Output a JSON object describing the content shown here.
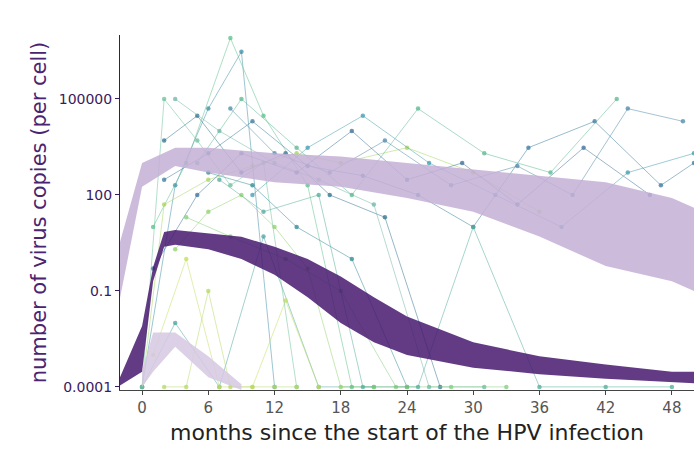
{
  "chart_data": {
    "type": "line",
    "x_label": "months since the start of the HPV infection",
    "y_label": "number of virus copies (per cell)",
    "xlim": [
      -2,
      50
    ],
    "xticks": [
      0,
      6,
      12,
      18,
      24,
      30,
      36,
      42,
      48
    ],
    "ylim": [
      8e-05,
      10000000
    ],
    "yticks": [
      0.0001,
      0.1,
      100,
      100000
    ],
    "log": "y",
    "grid": false,
    "series": [
      {
        "type": "line",
        "marker": "circle",
        "color": "#3b8ea5",
        "x": [
          0,
          3,
          6,
          9,
          12
        ],
        "values": [
          0.0001,
          200,
          50000,
          3000000,
          0.0001
        ]
      },
      {
        "type": "line",
        "marker": "circle",
        "color": "#5bc08a",
        "x": [
          1,
          4,
          8,
          11,
          15,
          19
        ],
        "values": [
          10,
          1000,
          8000000,
          30000,
          200,
          0.0001
        ]
      },
      {
        "type": "line",
        "marker": "circle",
        "color": "#2f6f8f",
        "x": [
          2,
          5,
          9,
          13,
          17,
          22,
          27
        ],
        "values": [
          5000,
          30000,
          500,
          2000,
          100,
          20,
          0.0001
        ]
      },
      {
        "type": "line",
        "marker": "circle",
        "color": "#a5d65a",
        "x": [
          0,
          2,
          6,
          10,
          14,
          18,
          24,
          30,
          36
        ],
        "values": [
          0.0001,
          50,
          300,
          800,
          2000,
          1000,
          3000,
          500,
          30
        ]
      },
      {
        "type": "line",
        "marker": "circle",
        "color": "#6fb6a8",
        "x": [
          3,
          7,
          12,
          16,
          21,
          26,
          31
        ],
        "values": [
          100000,
          10000,
          1000,
          300,
          50,
          0.0001,
          0.0001
        ]
      },
      {
        "type": "line",
        "marker": "circle",
        "color": "#3a6d9a",
        "x": [
          1,
          5,
          9,
          14,
          19,
          24,
          29,
          34,
          40,
          46
        ],
        "values": [
          0.5,
          100,
          2000,
          500,
          10000,
          300,
          1000,
          50,
          3000,
          100
        ]
      },
      {
        "type": "line",
        "marker": "circle",
        "color": "#7fcf7a",
        "x": [
          4,
          8,
          13,
          18,
          23,
          28,
          33
        ],
        "values": [
          20,
          5,
          1,
          0.1,
          0.0001,
          0.0001,
          0.0001
        ]
      },
      {
        "type": "line",
        "marker": "circle",
        "color": "#4aa3a0",
        "x": [
          0,
          3,
          7,
          11,
          16,
          21
        ],
        "values": [
          0.0001,
          0.01,
          0.0001,
          5,
          0.0001,
          0.0001
        ]
      },
      {
        "type": "line",
        "marker": "circle",
        "color": "#35799c",
        "x": [
          2,
          6,
          10,
          15,
          20,
          25,
          30,
          35,
          41,
          47,
          50
        ],
        "values": [
          300,
          2000,
          20000,
          800,
          400,
          100,
          10,
          3000,
          20000,
          200,
          1000
        ]
      },
      {
        "type": "line",
        "marker": "circle",
        "color": "#58b88f",
        "x": [
          5,
          9,
          14,
          19,
          25,
          31,
          37,
          43
        ],
        "values": [
          1000,
          100000,
          3000,
          100,
          50000,
          2000,
          500,
          100000
        ]
      },
      {
        "type": "line",
        "marker": "circle",
        "color": "#c2df5a",
        "x": [
          1,
          4,
          7,
          10,
          13,
          16
        ],
        "values": [
          0.001,
          1,
          0.0001,
          0.0001,
          0.05,
          0.0001
        ]
      },
      {
        "type": "line",
        "marker": "circle",
        "color": "#2d8a96",
        "x": [
          6,
          10,
          14,
          19,
          24
        ],
        "values": [
          500,
          200,
          10,
          1,
          0.0001
        ]
      },
      {
        "type": "line",
        "marker": "circle",
        "color": "#8fd36a",
        "x": [
          3,
          6,
          9,
          12,
          15,
          18,
          21,
          24
        ],
        "values": [
          2,
          30,
          100,
          10,
          0.5,
          0.0001,
          0.0001,
          0.0001
        ]
      },
      {
        "type": "line",
        "marker": "circle",
        "color": "#4c88a8",
        "x": [
          8,
          12,
          17,
          22,
          28,
          34,
          39,
          44,
          49
        ],
        "values": [
          50000,
          2000,
          500,
          5000,
          200,
          800,
          100,
          50000,
          20000
        ]
      },
      {
        "type": "line",
        "marker": "circle",
        "color": "#69c29a",
        "x": [
          0,
          2,
          5,
          8,
          11,
          14
        ],
        "values": [
          0.0001,
          100000,
          5000,
          200,
          1000,
          0.0001
        ]
      },
      {
        "type": "line",
        "marker": "circle",
        "color": "#3f9bb0",
        "x": [
          10,
          15,
          20,
          26,
          32,
          38,
          44,
          50
        ],
        "values": [
          100,
          3000,
          30000,
          1000,
          100,
          10,
          500,
          2000
        ]
      },
      {
        "type": "line",
        "marker": "circle",
        "color": "#b4da62",
        "x": [
          2,
          4,
          6,
          8,
          10,
          12,
          14
        ],
        "values": [
          0.0001,
          0.0001,
          0.1,
          0.0001,
          0.0001,
          0.0001,
          0.0001
        ]
      },
      {
        "type": "line",
        "marker": "circle",
        "color": "#52ab9c",
        "x": [
          7,
          11,
          16,
          20,
          25,
          30,
          36,
          42,
          48
        ],
        "values": [
          300,
          30,
          100,
          0.0001,
          0.0001,
          10,
          0.0001,
          0.0001,
          0.0001
        ]
      },
      {
        "type": "band",
        "color": "#c4afd6",
        "x": [
          -2,
          0,
          3,
          6,
          12,
          18,
          24,
          30,
          36,
          42,
          48,
          50
        ],
        "values": [
          3.4,
          1000,
          3000,
          3000,
          2000,
          1600,
          1000,
          630,
          400,
          250,
          80,
          40
        ],
        "lower": [
          0.06,
          180,
          800,
          500,
          250,
          180,
          80,
          30,
          5,
          0.6,
          0.2,
          0.1
        ]
      },
      {
        "type": "band",
        "color": "#d6c8e2",
        "x": [
          0,
          1,
          3,
          6,
          9
        ],
        "values": [
          0.0003,
          0.005,
          0.005,
          0.0009,
          0.00012
        ],
        "lower": [
          0.0001,
          0.0003,
          0.0018,
          0.0002,
          8e-05
        ]
      },
      {
        "type": "band",
        "color": "#46196e",
        "x": [
          -2,
          0,
          1,
          2,
          3,
          6,
          9,
          12,
          15,
          18,
          21,
          24,
          30,
          36,
          42,
          48,
          50
        ],
        "values": [
          0.0002,
          0.008,
          0.56,
          7,
          8,
          6.3,
          4.9,
          2.4,
          1,
          0.28,
          0.063,
          0.016,
          0.0025,
          0.0009,
          0.0005,
          0.0003,
          0.0003
        ],
        "lower": [
          0.00011,
          0.0003,
          0.2,
          2.4,
          2.8,
          2,
          1,
          0.32,
          0.063,
          0.01,
          0.0025,
          0.001,
          0.0004,
          0.00025,
          0.00018,
          0.00014,
          0.00013
        ]
      }
    ]
  }
}
